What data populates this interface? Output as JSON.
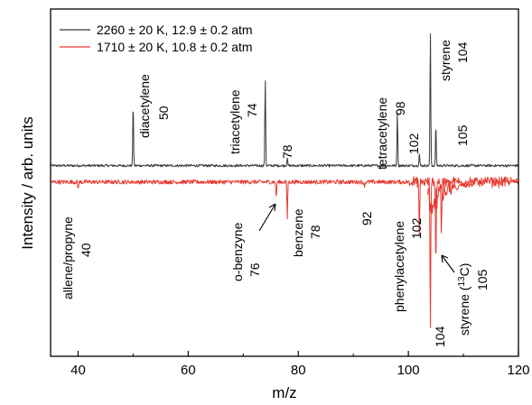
{
  "chart_data": {
    "type": "line",
    "xlabel": "m/z",
    "ylabel": "Intensity / arb. units",
    "xlim": [
      35,
      120
    ],
    "xticks": [
      40,
      60,
      80,
      100,
      120
    ],
    "ylim": [
      -1.4,
      1.15
    ],
    "grid": false,
    "legend_position": "top-left",
    "series": [
      {
        "name": "2260 ± 20 K, 12.9 ± 0.2 atm",
        "color": "#3a3a3a",
        "baseline": 0,
        "peaks": [
          {
            "x": 50,
            "y": 0.47
          },
          {
            "x": 74,
            "y": 0.64
          },
          {
            "x": 78,
            "y": 0.06
          },
          {
            "x": 98,
            "y": 0.39
          },
          {
            "x": 102,
            "y": 0.09
          },
          {
            "x": 104,
            "y": 1.0
          },
          {
            "x": 105,
            "y": 0.3
          }
        ]
      },
      {
        "name": "1710 ± 20 K, 10.8 ± 0.2 atm",
        "color": "#e8392f",
        "baseline": -0.12,
        "peaks": [
          {
            "x": 40,
            "y": -0.05
          },
          {
            "x": 76,
            "y": -0.12
          },
          {
            "x": 78,
            "y": -0.27
          },
          {
            "x": 92,
            "y": -0.03
          },
          {
            "x": 102,
            "y": -0.43
          },
          {
            "x": 104,
            "y": -1.1
          },
          {
            "x": 105,
            "y": -0.62
          },
          {
            "x": 106,
            "y": -0.4
          }
        ]
      }
    ],
    "annotations": [
      {
        "name": "diacetylene",
        "mz": "50"
      },
      {
        "name": "triacetylene",
        "mz": "74"
      },
      {
        "name": "",
        "mz": "78"
      },
      {
        "name": "tetracetylene",
        "mz": "98"
      },
      {
        "name": "",
        "mz": "102"
      },
      {
        "name": "styrene",
        "mz": "104"
      },
      {
        "name": "",
        "mz": "105"
      },
      {
        "name": "allene/propyne",
        "mz": "40"
      },
      {
        "name": "o-benzyne",
        "mz": "76"
      },
      {
        "name": "benzene",
        "mz": "78"
      },
      {
        "name": "",
        "mz": "92"
      },
      {
        "name": "phenylacetylene",
        "mz": "102"
      },
      {
        "name": "",
        "mz": "104"
      },
      {
        "name": "styrene (",
        "sup": "13",
        "name_end": "C)",
        "mz": "105"
      }
    ]
  }
}
